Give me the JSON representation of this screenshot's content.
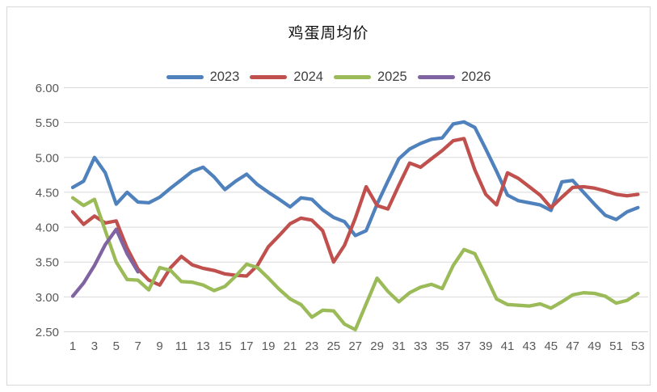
{
  "title": "鸡蛋周均价",
  "chart_data": {
    "type": "line",
    "title": "鸡蛋周均价",
    "x_tick_labels": [
      1,
      3,
      5,
      7,
      9,
      11,
      13,
      15,
      17,
      19,
      21,
      23,
      25,
      27,
      29,
      31,
      33,
      35,
      37,
      39,
      41,
      43,
      45,
      47,
      49,
      51,
      53
    ],
    "x_range": [
      1,
      53
    ],
    "ylim": [
      2.5,
      6.0
    ],
    "y_tick_step": 0.5,
    "y_tick_labels": [
      "6.00",
      "5.50",
      "5.00",
      "4.50",
      "4.00",
      "3.50",
      "3.00",
      "2.50"
    ],
    "grid": true,
    "legend_position": "top",
    "gridline_color": "#d9d9d9",
    "axis_text_color": "#595959",
    "series": [
      {
        "name": "2023",
        "color": "#4F81BD",
        "start_week": 1,
        "values": [
          4.57,
          4.66,
          5.0,
          4.78,
          4.33,
          4.5,
          4.36,
          4.35,
          4.43,
          4.56,
          4.68,
          4.8,
          4.86,
          4.72,
          4.54,
          4.66,
          4.76,
          4.61,
          4.5,
          4.4,
          4.29,
          4.42,
          4.4,
          4.25,
          4.14,
          4.08,
          3.88,
          3.95,
          4.33,
          4.66,
          4.98,
          5.12,
          5.2,
          5.26,
          5.28,
          5.48,
          5.51,
          5.43,
          5.12,
          4.8,
          4.46,
          4.38,
          4.35,
          4.32,
          4.24,
          4.65,
          4.67,
          4.5,
          4.33,
          4.17,
          4.11,
          4.22,
          4.28
        ]
      },
      {
        "name": "2024",
        "color": "#C0504D",
        "start_week": 1,
        "values": [
          4.22,
          4.04,
          4.16,
          4.06,
          4.09,
          3.7,
          3.4,
          3.24,
          3.17,
          3.42,
          3.58,
          3.46,
          3.41,
          3.38,
          3.33,
          3.31,
          3.3,
          3.45,
          3.72,
          3.88,
          4.05,
          4.13,
          4.1,
          3.95,
          3.5,
          3.74,
          4.13,
          4.58,
          4.31,
          4.26,
          4.6,
          4.92,
          4.86,
          4.98,
          5.1,
          5.24,
          5.27,
          4.82,
          4.47,
          4.32,
          4.78,
          4.7,
          4.58,
          4.46,
          4.28,
          4.43,
          4.57,
          4.58,
          4.56,
          4.52,
          4.47,
          4.45,
          4.47
        ]
      },
      {
        "name": "2025",
        "color": "#9BBB59",
        "start_week": 1,
        "values": [
          4.42,
          4.31,
          4.4,
          3.95,
          3.5,
          3.25,
          3.24,
          3.1,
          3.42,
          3.38,
          3.22,
          3.21,
          3.17,
          3.09,
          3.15,
          3.3,
          3.47,
          3.42,
          3.27,
          3.11,
          2.97,
          2.89,
          2.71,
          2.81,
          2.8,
          2.61,
          2.53,
          2.9,
          3.27,
          3.08,
          2.93,
          3.06,
          3.14,
          3.18,
          3.12,
          3.45,
          3.68,
          3.62,
          3.3,
          2.97,
          2.89,
          2.88,
          2.87,
          2.9,
          2.84,
          2.93,
          3.03,
          3.06,
          3.05,
          3.01,
          2.91,
          2.95,
          3.05
        ]
      },
      {
        "name": "2026",
        "color": "#8064A2",
        "start_week": 1,
        "values": [
          3.01,
          3.2,
          3.45,
          3.75,
          3.97,
          3.62,
          3.36
        ]
      }
    ]
  }
}
